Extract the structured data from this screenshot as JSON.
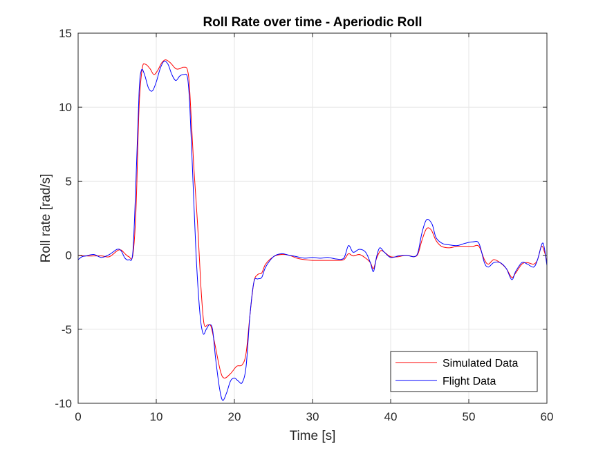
{
  "chart_data": {
    "type": "line",
    "title": "Roll Rate over time - Aperiodic Roll",
    "xlabel": "Time [s]",
    "ylabel": "Roll rate [rad/s]",
    "xlim": [
      0,
      60
    ],
    "ylim": [
      -10,
      15
    ],
    "xticks": [
      0,
      10,
      20,
      30,
      40,
      50,
      60
    ],
    "yticks": [
      -10,
      -5,
      0,
      5,
      10,
      15
    ],
    "xtick_labels": [
      "0",
      "10",
      "20",
      "30",
      "40",
      "50",
      "60"
    ],
    "ytick_labels": [
      "-10",
      "-5",
      "0",
      "5",
      "10",
      "15"
    ],
    "grid": true,
    "legend_position": "bottom-right",
    "series": [
      {
        "name": "Simulated Data",
        "color": "#ff0000",
        "points": [
          [
            0,
            0
          ],
          [
            1,
            -0.05
          ],
          [
            2,
            -0.05
          ],
          [
            3,
            -0.05
          ],
          [
            4,
            -0.1
          ],
          [
            5,
            0.3
          ],
          [
            5.5,
            0.35
          ],
          [
            6,
            0.1
          ],
          [
            6.5,
            -0.1
          ],
          [
            7,
            0
          ],
          [
            7.4,
            3
          ],
          [
            7.8,
            10
          ],
          [
            8.2,
            12.6
          ],
          [
            8.6,
            12.9
          ],
          [
            9.2,
            12.6
          ],
          [
            9.7,
            12.2
          ],
          [
            10.2,
            12.5
          ],
          [
            10.7,
            13
          ],
          [
            11.2,
            13.2
          ],
          [
            11.8,
            13
          ],
          [
            12.5,
            12.6
          ],
          [
            13,
            12.6
          ],
          [
            13.5,
            12.7
          ],
          [
            14,
            12.5
          ],
          [
            14.3,
            11
          ],
          [
            14.8,
            6
          ],
          [
            15.3,
            2
          ],
          [
            15.7,
            -2
          ],
          [
            16.1,
            -4.6
          ],
          [
            16.6,
            -4.7
          ],
          [
            17,
            -4.8
          ],
          [
            17.5,
            -6
          ],
          [
            18.2,
            -7.8
          ],
          [
            18.7,
            -8.3
          ],
          [
            19.5,
            -8
          ],
          [
            20.3,
            -7.5
          ],
          [
            21,
            -7.4
          ],
          [
            21.5,
            -6.6
          ],
          [
            22,
            -4
          ],
          [
            22.5,
            -1.8
          ],
          [
            23,
            -1.3
          ],
          [
            23.5,
            -1.2
          ],
          [
            24,
            -0.6
          ],
          [
            25,
            -0.1
          ],
          [
            26,
            0.05
          ],
          [
            27,
            0
          ],
          [
            28,
            -0.2
          ],
          [
            29,
            -0.3
          ],
          [
            30,
            -0.35
          ],
          [
            31,
            -0.35
          ],
          [
            32,
            -0.35
          ],
          [
            33,
            -0.35
          ],
          [
            34,
            -0.3
          ],
          [
            34.6,
            0.1
          ],
          [
            35.2,
            -0.05
          ],
          [
            36,
            0.05
          ],
          [
            36.8,
            -0.2
          ],
          [
            37.4,
            -0.5
          ],
          [
            37.8,
            -0.9
          ],
          [
            38.2,
            -0.2
          ],
          [
            38.7,
            0.3
          ],
          [
            39.2,
            0.2
          ],
          [
            40,
            -0.1
          ],
          [
            41,
            -0.1
          ],
          [
            42,
            0
          ],
          [
            43,
            -0.1
          ],
          [
            43.5,
            0.1
          ],
          [
            44,
            1
          ],
          [
            44.6,
            1.8
          ],
          [
            45.2,
            1.7
          ],
          [
            45.8,
            1
          ],
          [
            46.5,
            0.6
          ],
          [
            47.5,
            0.5
          ],
          [
            48.5,
            0.6
          ],
          [
            49.5,
            0.6
          ],
          [
            50.5,
            0.6
          ],
          [
            51.3,
            0.6
          ],
          [
            52,
            -0.3
          ],
          [
            52.5,
            -0.6
          ],
          [
            53.2,
            -0.3
          ],
          [
            54,
            -0.5
          ],
          [
            54.8,
            -0.9
          ],
          [
            55.5,
            -1.5
          ],
          [
            56,
            -1.2
          ],
          [
            56.8,
            -0.6
          ],
          [
            57.5,
            -0.5
          ],
          [
            58.3,
            -0.6
          ],
          [
            58.8,
            -0.3
          ],
          [
            59.3,
            0.6
          ],
          [
            59.7,
            0.2
          ],
          [
            60,
            -0.5
          ]
        ]
      },
      {
        "name": "Flight Data",
        "color": "#0000ff",
        "points": [
          [
            0,
            -0.3
          ],
          [
            0.5,
            -0.1
          ],
          [
            1,
            -0.05
          ],
          [
            2,
            0.05
          ],
          [
            3,
            -0.15
          ],
          [
            4,
            0.05
          ],
          [
            5,
            0.4
          ],
          [
            5.5,
            0.3
          ],
          [
            6,
            -0.2
          ],
          [
            6.5,
            -0.3
          ],
          [
            7,
            0.2
          ],
          [
            7.4,
            5
          ],
          [
            7.8,
            11
          ],
          [
            8.1,
            12.5
          ],
          [
            8.5,
            12.2
          ],
          [
            9,
            11.3
          ],
          [
            9.5,
            11.1
          ],
          [
            10,
            11.7
          ],
          [
            10.5,
            12.6
          ],
          [
            11,
            13.1
          ],
          [
            11.5,
            12.9
          ],
          [
            12,
            12.2
          ],
          [
            12.5,
            11.8
          ],
          [
            13,
            12.1
          ],
          [
            13.5,
            12.2
          ],
          [
            14,
            12
          ],
          [
            14.3,
            10
          ],
          [
            14.7,
            5
          ],
          [
            15.1,
            0
          ],
          [
            15.6,
            -4
          ],
          [
            16,
            -5.3
          ],
          [
            16.4,
            -5
          ],
          [
            16.8,
            -4.7
          ],
          [
            17.2,
            -5
          ],
          [
            17.6,
            -7
          ],
          [
            18.1,
            -9
          ],
          [
            18.5,
            -9.8
          ],
          [
            19,
            -9.3
          ],
          [
            19.5,
            -8.5
          ],
          [
            20,
            -8.3
          ],
          [
            20.5,
            -8.5
          ],
          [
            21,
            -8.6
          ],
          [
            21.5,
            -7.5
          ],
          [
            22,
            -4
          ],
          [
            22.5,
            -1.8
          ],
          [
            23,
            -1.6
          ],
          [
            23.5,
            -1.5
          ],
          [
            24,
            -0.8
          ],
          [
            25,
            -0.1
          ],
          [
            26,
            0.1
          ],
          [
            27,
            0
          ],
          [
            28,
            -0.1
          ],
          [
            29,
            -0.2
          ],
          [
            30,
            -0.15
          ],
          [
            31,
            -0.2
          ],
          [
            32,
            -0.15
          ],
          [
            33,
            -0.25
          ],
          [
            34,
            -0.2
          ],
          [
            34.6,
            0.65
          ],
          [
            35.2,
            0.2
          ],
          [
            36,
            0.4
          ],
          [
            36.8,
            0.2
          ],
          [
            37.4,
            -0.5
          ],
          [
            37.8,
            -1.1
          ],
          [
            38.2,
            -0.1
          ],
          [
            38.6,
            0.5
          ],
          [
            39.2,
            0.2
          ],
          [
            40,
            -0.15
          ],
          [
            41,
            -0.05
          ],
          [
            42,
            0
          ],
          [
            43,
            -0.1
          ],
          [
            43.5,
            0.2
          ],
          [
            44,
            1.5
          ],
          [
            44.6,
            2.4
          ],
          [
            45.3,
            2.1
          ],
          [
            45.8,
            1.2
          ],
          [
            46.6,
            0.8
          ],
          [
            47.5,
            0.7
          ],
          [
            48.5,
            0.65
          ],
          [
            49.5,
            0.8
          ],
          [
            50.5,
            0.9
          ],
          [
            51.3,
            0.8
          ],
          [
            52,
            -0.5
          ],
          [
            52.5,
            -0.8
          ],
          [
            53.2,
            -0.5
          ],
          [
            54,
            -0.5
          ],
          [
            54.8,
            -0.9
          ],
          [
            55.5,
            -1.65
          ],
          [
            56,
            -1.1
          ],
          [
            56.8,
            -0.5
          ],
          [
            57.5,
            -0.6
          ],
          [
            58.3,
            -0.8
          ],
          [
            58.8,
            -0.3
          ],
          [
            59.4,
            0.8
          ],
          [
            59.7,
            0.4
          ],
          [
            60,
            -0.7
          ]
        ]
      }
    ]
  }
}
